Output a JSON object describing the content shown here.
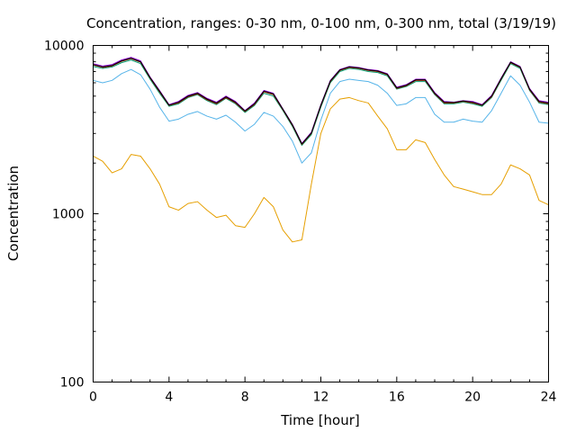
{
  "chart_data": {
    "type": "line",
    "title": "Concentration, ranges: 0-30 nm, 0-100 nm, 0-300 nm, total (3/19/19)",
    "xlabel": "Time [hour]",
    "ylabel": "Concentration",
    "xlim": [
      0,
      24
    ],
    "ylim": [
      100,
      10000
    ],
    "yscale": "log",
    "grid": false,
    "legend": "none",
    "x_ticks": [
      0,
      4,
      8,
      12,
      16,
      20,
      24
    ],
    "x_tick_labels": [
      "0",
      "4",
      "8",
      "12",
      "16",
      "20",
      "24"
    ],
    "y_ticks": [
      100,
      1000,
      10000
    ],
    "y_tick_labels": [
      "100",
      "1000",
      "10000"
    ],
    "x": [
      0,
      0.5,
      1,
      1.5,
      2,
      2.5,
      3,
      3.5,
      4,
      4.5,
      5,
      5.5,
      6,
      6.5,
      7,
      7.5,
      8,
      8.5,
      9,
      9.5,
      10,
      10.5,
      11,
      11.5,
      12,
      12.5,
      13,
      13.5,
      14,
      14.5,
      15,
      15.5,
      16,
      16.5,
      17,
      17.5,
      18,
      18.5,
      19,
      19.5,
      20,
      20.5,
      21,
      21.5,
      22,
      22.5,
      23,
      23.5,
      24
    ],
    "series": [
      {
        "color": "#e69f00",
        "values": [
          2200,
          2050,
          1750,
          1850,
          2250,
          2200,
          1850,
          1500,
          1100,
          1050,
          1150,
          1180,
          1050,
          950,
          980,
          850,
          830,
          1000,
          1250,
          1100,
          800,
          680,
          700,
          1500,
          3000,
          4200,
          4800,
          4900,
          4700,
          4550,
          3800,
          3200,
          2400,
          2400,
          2750,
          2650,
          2100,
          1700,
          1450,
          1400,
          1350,
          1300,
          1300,
          1500,
          1950,
          1850,
          1700,
          1200,
          1130
        ]
      },
      {
        "color": "#56b4e9",
        "values": [
          6200,
          6000,
          6200,
          6800,
          7200,
          6700,
          5500,
          4300,
          3550,
          3650,
          3900,
          4050,
          3800,
          3650,
          3850,
          3500,
          3100,
          3400,
          4000,
          3800,
          3300,
          2700,
          2000,
          2300,
          3600,
          5200,
          6100,
          6300,
          6200,
          6100,
          5800,
          5200,
          4400,
          4500,
          4900,
          4900,
          3900,
          3500,
          3500,
          3650,
          3550,
          3500,
          4100,
          5200,
          6600,
          5800,
          4600,
          3500,
          3450
        ]
      },
      {
        "color": "#009e73",
        "values": [
          7500,
          7300,
          7450,
          7900,
          8200,
          7800,
          6300,
          5200,
          4350,
          4500,
          4900,
          5100,
          4700,
          4450,
          4850,
          4500,
          4000,
          4400,
          5200,
          5000,
          4100,
          3300,
          2550,
          2950,
          4300,
          6000,
          7000,
          7300,
          7200,
          7000,
          6900,
          6600,
          5500,
          5700,
          6100,
          6100,
          5100,
          4500,
          4500,
          4600,
          4500,
          4350,
          4900,
          6200,
          7800,
          7300,
          5400,
          4550,
          4450
        ]
      },
      {
        "color": "#a02000",
        "values": [
          7650,
          7400,
          7550,
          8050,
          8350,
          7950,
          6400,
          5300,
          4400,
          4550,
          4950,
          5150,
          4750,
          4500,
          4900,
          4550,
          4050,
          4450,
          5300,
          5100,
          4150,
          3350,
          2580,
          3000,
          4380,
          6100,
          7100,
          7400,
          7300,
          7100,
          7000,
          6700,
          5550,
          5750,
          6200,
          6200,
          5150,
          4550,
          4550,
          4650,
          4550,
          4400,
          4950,
          6300,
          7900,
          7400,
          5450,
          4600,
          4500
        ]
      },
      {
        "color": "#9400d3",
        "values": [
          7800,
          7550,
          7700,
          8200,
          8500,
          8100,
          6500,
          5400,
          4450,
          4650,
          5050,
          5250,
          4850,
          4600,
          5000,
          4650,
          4100,
          4550,
          5400,
          5200,
          4200,
          3400,
          2620,
          3050,
          4450,
          6200,
          7200,
          7500,
          7400,
          7200,
          7100,
          6800,
          5650,
          5850,
          6300,
          6300,
          5250,
          4650,
          4600,
          4700,
          4650,
          4450,
          5050,
          6400,
          8000,
          7500,
          5550,
          4700,
          4600
        ]
      },
      {
        "color": "#000000",
        "values": [
          7700,
          7450,
          7600,
          8100,
          8400,
          8000,
          6450,
          5350,
          4420,
          4600,
          5000,
          5200,
          4800,
          4550,
          4950,
          4600,
          4080,
          4500,
          5350,
          5150,
          4180,
          3380,
          2600,
          3020,
          4420,
          6150,
          7150,
          7450,
          7350,
          7150,
          7050,
          6750,
          5600,
          5800,
          6250,
          6250,
          5200,
          4600,
          4580,
          4680,
          4600,
          4420,
          5000,
          6350,
          7950,
          7450,
          5500,
          4650,
          4550
        ]
      }
    ]
  }
}
